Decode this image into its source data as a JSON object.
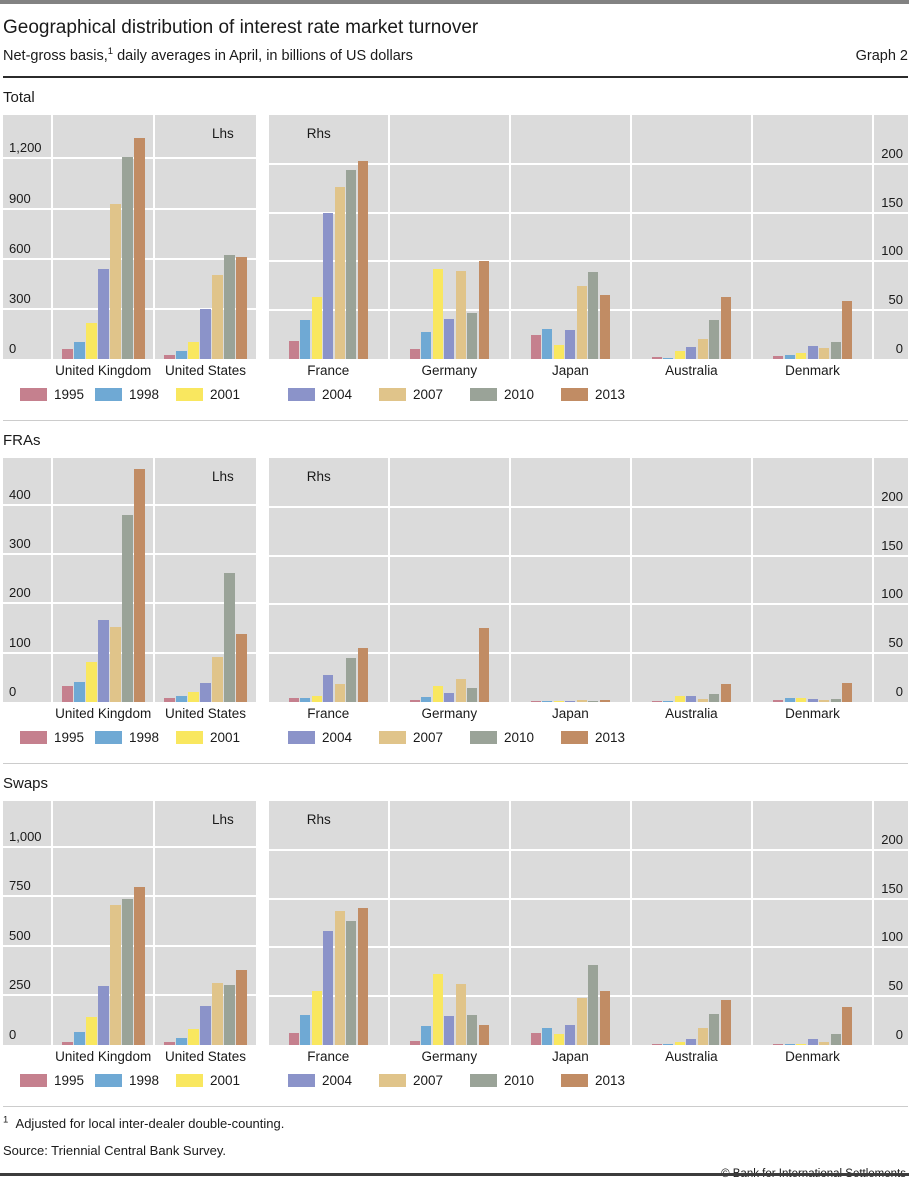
{
  "header": {
    "title": "Geographical distribution of interest rate market turnover",
    "subtitle": "Net-gross basis,",
    "subtitle_sup": "1",
    "subtitle_rest": " daily averages in April, in billions of US dollars",
    "graph_label": "Graph 2"
  },
  "legend": {
    "years": [
      "1995",
      "1998",
      "2001",
      "2004",
      "2007",
      "2010",
      "2013"
    ],
    "colors": {
      "1995": "#c5808e",
      "1998": "#6fa9d4",
      "2001": "#f9e75f",
      "2004": "#8b93c9",
      "2007": "#e0c48a",
      "2010": "#9aa398",
      "2013": "#c18c64"
    }
  },
  "styling": {
    "plot_background": "#dbdbdb",
    "gridline_color": "#ffffff",
    "text_color": "#1a1a1a"
  },
  "chart_data": [
    {
      "panel": "Total",
      "type": "bar",
      "series_years": [
        "1995",
        "1998",
        "2001",
        "2004",
        "2007",
        "2010",
        "2013"
      ],
      "lhs": {
        "side_label": "Lhs",
        "ticks": [
          0,
          300,
          600,
          900,
          1200
        ],
        "tick_labels": [
          "0",
          "300",
          "600",
          "900",
          "1,200"
        ],
        "ylim": [
          0,
          1460
        ],
        "groups": [
          {
            "label": "United Kingdom",
            "values": [
              57,
              104,
              216,
              540,
              930,
              1210,
              1320
            ]
          },
          {
            "label": "United States",
            "values": [
              25,
              45,
              100,
              300,
              500,
              620,
              608
            ]
          }
        ]
      },
      "rhs": {
        "side_label": "Rhs",
        "ticks": [
          0,
          50,
          100,
          150,
          200
        ],
        "tick_labels": [
          "0",
          "50",
          "100",
          "150",
          "200"
        ],
        "ylim": [
          0,
          250
        ],
        "groups": [
          {
            "label": "France",
            "values": [
              18,
              40,
              64,
              150,
              176,
              194,
              203
            ]
          },
          {
            "label": "Germany",
            "values": [
              10,
              28,
              92,
              41,
              90,
              47,
              100
            ]
          },
          {
            "label": "Japan",
            "values": [
              25,
              31,
              14,
              30,
              75,
              89,
              66
            ]
          },
          {
            "label": "Australia",
            "values": [
              2,
              1.5,
              8,
              12,
              21,
              40,
              64
            ]
          },
          {
            "label": "Denmark",
            "values": [
              3,
              4.5,
              6,
              13,
              11,
              17,
              59
            ]
          }
        ]
      }
    },
    {
      "panel": "FRAs",
      "type": "bar",
      "series_years": [
        "1995",
        "1998",
        "2001",
        "2004",
        "2007",
        "2010",
        "2013"
      ],
      "lhs": {
        "side_label": "Lhs",
        "ticks": [
          0,
          100,
          200,
          300,
          400
        ],
        "tick_labels": [
          "0",
          "100",
          "200",
          "300",
          "400"
        ],
        "ylim": [
          0,
          495
        ],
        "groups": [
          {
            "label": "United Kingdom",
            "values": [
              32,
              40,
              82,
              167,
              152,
              380,
              472
            ]
          },
          {
            "label": "United States",
            "values": [
              8,
              13,
              20,
              38,
              91,
              262,
              137
            ]
          }
        ]
      },
      "rhs": {
        "side_label": "Rhs",
        "ticks": [
          0,
          50,
          100,
          150,
          200
        ],
        "tick_labels": [
          "0",
          "50",
          "100",
          "150",
          "200"
        ],
        "ylim": [
          0,
          250
        ],
        "groups": [
          {
            "label": "France",
            "values": [
              4,
              4,
              6,
              28,
              18,
              45,
              55
            ]
          },
          {
            "label": "Germany",
            "values": [
              2,
              5,
              16,
              9,
              24,
              14,
              76
            ]
          },
          {
            "label": "Japan",
            "values": [
              1.5,
              0.5,
              1,
              0.3,
              2,
              1.5,
              2
            ]
          },
          {
            "label": "Australia",
            "values": [
              1.5,
              1,
              6,
              6,
              3,
              8,
              18
            ]
          },
          {
            "label": "Denmark",
            "values": [
              2,
              4,
              4,
              3,
              2.5,
              3.5,
              19
            ]
          }
        ]
      }
    },
    {
      "panel": "Swaps",
      "type": "bar",
      "series_years": [
        "1995",
        "1998",
        "2001",
        "2004",
        "2007",
        "2010",
        "2013"
      ],
      "lhs": {
        "side_label": "Lhs",
        "ticks": [
          0,
          250,
          500,
          750,
          1000
        ],
        "tick_labels": [
          "0",
          "250",
          "500",
          "750",
          "1,000"
        ],
        "ylim": [
          0,
          1230
        ],
        "groups": [
          {
            "label": "United Kingdom",
            "values": [
              17,
              68,
              140,
              295,
              705,
              735,
              795
            ]
          },
          {
            "label": "United States",
            "values": [
              15,
              33,
              80,
              195,
              312,
              300,
              380
            ]
          }
        ]
      },
      "rhs": {
        "side_label": "Rhs",
        "ticks": [
          0,
          50,
          100,
          150,
          200
        ],
        "tick_labels": [
          "0",
          "50",
          "100",
          "150",
          "200"
        ],
        "ylim": [
          0,
          250
        ],
        "groups": [
          {
            "label": "France",
            "values": [
              12,
              31,
              55,
              117,
              137,
              127,
              140
            ]
          },
          {
            "label": "Germany",
            "values": [
              4,
              19,
              73,
              30,
              62,
              31,
              21
            ]
          },
          {
            "label": "Japan",
            "values": [
              12,
              17,
              11,
              21,
              48,
              82,
              55
            ]
          },
          {
            "label": "Australia",
            "values": [
              0.5,
              1,
              3.5,
              6,
              17,
              32,
              46
            ]
          },
          {
            "label": "Denmark",
            "values": [
              0.3,
              0.5,
              1.5,
              6.5,
              3.5,
              11,
              39
            ]
          }
        ]
      }
    }
  ],
  "footer": {
    "footnote_sup": "1",
    "footnote": "Adjusted for local inter-dealer double-counting.",
    "source": "Source: Triennial Central Bank Survey.",
    "copyright": "© Bank for International Settlements"
  }
}
